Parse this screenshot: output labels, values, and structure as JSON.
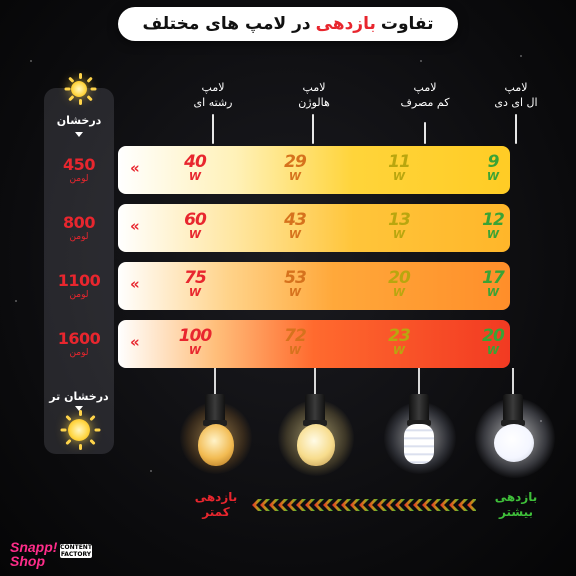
{
  "title": {
    "prefix": "تفاوت",
    "accent": "بازدهی",
    "suffix": "در لامپ های مختلف"
  },
  "brightness": {
    "top_label": "درخشان",
    "bottom_label": "درخشان تر"
  },
  "columns": [
    {
      "line1": "لامپ",
      "line2": "رشته ای"
    },
    {
      "line1": "لامپ",
      "line2": "هالوژن"
    },
    {
      "line1": "لامپ",
      "line2": "کم مصرف"
    },
    {
      "line1": "لامپ",
      "line2": "ال ای دی"
    }
  ],
  "lumen_unit": "لومن",
  "watt_unit": "W",
  "chevron": "«",
  "rows": [
    {
      "lumen": "450",
      "watts": [
        "40",
        "29",
        "11",
        "9"
      ]
    },
    {
      "lumen": "800",
      "watts": [
        "60",
        "43",
        "13",
        "12"
      ]
    },
    {
      "lumen": "1100",
      "watts": [
        "75",
        "53",
        "20",
        "17"
      ]
    },
    {
      "lumen": "1600",
      "watts": [
        "100",
        "72",
        "23",
        "20"
      ]
    }
  ],
  "efficiency": {
    "less": {
      "line1": "بازدهی",
      "line2": "کمتر"
    },
    "more": {
      "line1": "بازدهی",
      "line2": "بیشتر"
    }
  },
  "colors": {
    "accent": "#e8262e",
    "incandescent": "#e8262e",
    "halogen": "#d6721d",
    "cfl": "#b9a60f",
    "led": "#3aa335",
    "less_efficiency": "#e8262e",
    "more_efficiency": "#3fbf3a"
  },
  "icons": [
    "sun-icon",
    "down-arrow-icon",
    "chevron-left-icon",
    "bulb-icon"
  ],
  "branding": {
    "brand": "Snapp! Shop",
    "partner": "CONTENT FACTORY"
  }
}
